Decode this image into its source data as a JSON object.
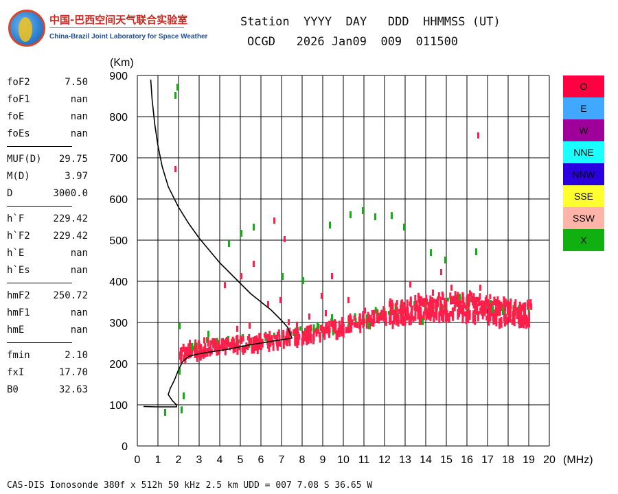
{
  "logo": {
    "cn": "中国-巴西空间天气联合实验室",
    "en": "China-Brazil Joint Laboratory for Space Weather"
  },
  "header": {
    "line1": "Station  YYYY  DAY   DDD  HHMMSS (UT)",
    "line2": "OCGD   2026 Jan09  009  011500"
  },
  "params": [
    [
      {
        "label": "foF2",
        "value": "7.50"
      },
      {
        "label": "foF1",
        "value": "nan"
      },
      {
        "label": "foE",
        "value": "nan"
      },
      {
        "label": "foEs",
        "value": "nan"
      }
    ],
    [
      {
        "label": "MUF(D)",
        "value": "29.75"
      },
      {
        "label": "M(D)",
        "value": "3.97"
      },
      {
        "label": "D",
        "value": "3000.0"
      }
    ],
    [
      {
        "label": "h`F",
        "value": "229.42"
      },
      {
        "label": "h`F2",
        "value": "229.42"
      },
      {
        "label": "h`E",
        "value": "nan"
      },
      {
        "label": "h`Es",
        "value": "nan"
      }
    ],
    [
      {
        "label": "hmF2",
        "value": "250.72"
      },
      {
        "label": "hmF1",
        "value": "nan"
      },
      {
        "label": "hmE",
        "value": "nan"
      }
    ],
    [
      {
        "label": "fmin",
        "value": "2.10"
      },
      {
        "label": "fxI",
        "value": "17.70"
      },
      {
        "label": "B0",
        "value": "32.63"
      }
    ]
  ],
  "legend": [
    {
      "label": "O",
      "color": "#ff0040"
    },
    {
      "label": "E",
      "color": "#40a8ff"
    },
    {
      "label": "W",
      "color": "#a0009a"
    },
    {
      "label": "NNE",
      "color": "#1affff"
    },
    {
      "label": "NNW",
      "color": "#2a00e0"
    },
    {
      "label": "SSE",
      "color": "#ffff30"
    },
    {
      "label": "SSW",
      "color": "#ffb4aa"
    },
    {
      "label": "X",
      "color": "#10b010"
    }
  ],
  "footer": "CAS-DIS Ionosonde 380f x 512h 50 kHz 2.5 km UDD = 007 7.08 S 36.65 W",
  "chart_data": {
    "type": "scatter",
    "title": "Ionogram",
    "xlabel": "(MHz)",
    "ylabel": "(Km)",
    "xlim": [
      0,
      20
    ],
    "ylim": [
      0,
      900
    ],
    "xticks": [
      0,
      1,
      2,
      3,
      4,
      5,
      6,
      7,
      8,
      9,
      10,
      11,
      12,
      13,
      14,
      15,
      16,
      17,
      18,
      19,
      20
    ],
    "yticks": [
      0,
      100,
      200,
      300,
      400,
      500,
      600,
      700,
      800,
      900
    ],
    "grid": true,
    "o_trace": [
      [
        2.3,
        232
      ],
      [
        2.6,
        238
      ],
      [
        3.0,
        242
      ],
      [
        3.5,
        245
      ],
      [
        4.0,
        248
      ],
      [
        4.5,
        250
      ],
      [
        5.0,
        253
      ],
      [
        5.5,
        256
      ],
      [
        6.0,
        258
      ],
      [
        6.5,
        262
      ],
      [
        7.0,
        266
      ],
      [
        7.5,
        270
      ],
      [
        8.0,
        275
      ],
      [
        8.5,
        280
      ],
      [
        9.0,
        286
      ],
      [
        9.5,
        292
      ],
      [
        10.0,
        298
      ],
      [
        10.5,
        305
      ],
      [
        11.0,
        312
      ],
      [
        11.5,
        318
      ],
      [
        12.0,
        322
      ],
      [
        12.5,
        326
      ],
      [
        13.0,
        330
      ],
      [
        13.5,
        334
      ],
      [
        14.0,
        338
      ],
      [
        14.5,
        341
      ],
      [
        15.0,
        343
      ],
      [
        15.5,
        344
      ],
      [
        16.0,
        343
      ],
      [
        16.5,
        340
      ],
      [
        17.0,
        336
      ],
      [
        17.5,
        332
      ],
      [
        18.0,
        328
      ],
      [
        18.5,
        325
      ],
      [
        18.8,
        325
      ]
    ],
    "o_scatter": [
      [
        2.5,
        258
      ],
      [
        3.2,
        264
      ],
      [
        4.1,
        262
      ],
      [
        4.8,
        292
      ],
      [
        5.4,
        300
      ],
      [
        6.3,
        352
      ],
      [
        6.9,
        362
      ],
      [
        7.3,
        308
      ],
      [
        7.7,
        302
      ],
      [
        8.3,
        322
      ],
      [
        8.9,
        372
      ],
      [
        9.1,
        330
      ],
      [
        10.2,
        362
      ],
      [
        11.0,
        336
      ],
      [
        12.2,
        352
      ],
      [
        12.8,
        356
      ],
      [
        13.6,
        372
      ],
      [
        14.3,
        380
      ],
      [
        15.2,
        392
      ],
      [
        16.1,
        378
      ],
      [
        16.6,
        392
      ],
      [
        13.2,
        400
      ],
      [
        14.7,
        430
      ],
      [
        9.4,
        420
      ],
      [
        5.0,
        420
      ],
      [
        4.2,
        398
      ],
      [
        6.6,
        555
      ],
      [
        7.1,
        510
      ],
      [
        5.6,
        450
      ],
      [
        16.5,
        762
      ],
      [
        1.8,
        680
      ]
    ],
    "x_scatter": [
      [
        1.8,
        860
      ],
      [
        1.9,
        880
      ],
      [
        2.0,
        300
      ],
      [
        2.0,
        190
      ],
      [
        2.2,
        130
      ],
      [
        2.6,
        250
      ],
      [
        3.4,
        280
      ],
      [
        4.4,
        500
      ],
      [
        5.0,
        525
      ],
      [
        5.6,
        540
      ],
      [
        7.0,
        420
      ],
      [
        8.0,
        410
      ],
      [
        8.7,
        300
      ],
      [
        9.4,
        320
      ],
      [
        9.3,
        545
      ],
      [
        10.3,
        570
      ],
      [
        10.9,
        580
      ],
      [
        11.5,
        565
      ],
      [
        12.3,
        568
      ],
      [
        12.9,
        540
      ],
      [
        14.2,
        478
      ],
      [
        14.9,
        460
      ],
      [
        15.6,
        370
      ],
      [
        16.4,
        480
      ],
      [
        17.2,
        340
      ],
      [
        17.7,
        335
      ],
      [
        13.8,
        310
      ],
      [
        11.2,
        300
      ],
      [
        1.3,
        90
      ],
      [
        2.1,
        96
      ]
    ],
    "virtual_height_curve": [
      [
        0.65,
        890
      ],
      [
        0.72,
        840
      ],
      [
        0.85,
        780
      ],
      [
        1.0,
        730
      ],
      [
        1.2,
        680
      ],
      [
        1.5,
        630
      ],
      [
        2.0,
        580
      ],
      [
        2.5,
        540
      ],
      [
        3.0,
        505
      ],
      [
        3.5,
        475
      ],
      [
        4.0,
        445
      ],
      [
        4.5,
        420
      ],
      [
        5.0,
        395
      ],
      [
        5.5,
        370
      ],
      [
        6.0,
        350
      ],
      [
        6.5,
        330
      ],
      [
        7.0,
        305
      ],
      [
        7.3,
        288
      ],
      [
        7.5,
        262
      ],
      [
        7.0,
        258
      ],
      [
        6.5,
        254
      ],
      [
        6.0,
        250
      ],
      [
        5.5,
        246
      ],
      [
        5.0,
        241
      ],
      [
        4.5,
        236
      ],
      [
        4.0,
        232
      ],
      [
        3.5,
        228
      ],
      [
        3.0,
        224
      ],
      [
        2.5,
        218
      ],
      [
        2.2,
        205
      ],
      [
        2.0,
        185
      ],
      [
        1.8,
        160
      ],
      [
        1.6,
        140
      ],
      [
        1.5,
        125
      ],
      [
        1.7,
        110
      ],
      [
        1.9,
        100
      ],
      [
        1.9,
        95
      ],
      [
        1.3,
        95
      ],
      [
        0.9,
        95
      ],
      [
        0.3,
        96
      ]
    ]
  }
}
